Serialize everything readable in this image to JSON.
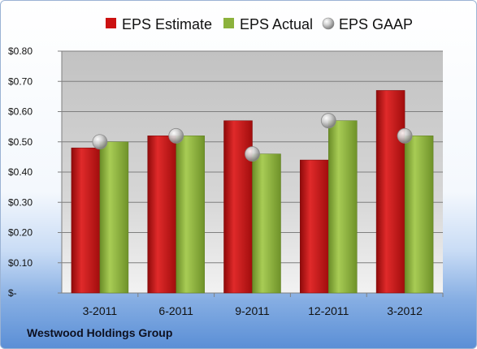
{
  "chart_data": {
    "type": "bar",
    "categories": [
      "3-2011",
      "6-2011",
      "9-2011",
      "12-2011",
      "3-2012"
    ],
    "series": [
      {
        "name": "EPS Estimate",
        "kind": "bar",
        "color": "#cc1111",
        "values": [
          0.48,
          0.52,
          0.57,
          0.44,
          0.67
        ]
      },
      {
        "name": "EPS Actual",
        "kind": "bar",
        "color": "#8cb23c",
        "values": [
          0.5,
          0.52,
          0.46,
          0.57,
          0.52
        ]
      },
      {
        "name": "EPS GAAP",
        "kind": "marker",
        "color": "#b8b8b8",
        "values": [
          0.5,
          0.52,
          0.46,
          0.57,
          0.52
        ]
      }
    ],
    "ylim": [
      0,
      0.8
    ],
    "yticks": [
      0,
      0.1,
      0.2,
      0.3,
      0.4,
      0.5,
      0.6,
      0.7,
      0.8
    ],
    "ytick_labels": [
      "$-",
      "$0.10",
      "$0.20",
      "$0.30",
      "$0.40",
      "$0.50",
      "$0.60",
      "$0.70",
      "$0.80"
    ],
    "grid": true,
    "legend_position": "top"
  },
  "footer": {
    "company": "Westwood Holdings Group"
  }
}
